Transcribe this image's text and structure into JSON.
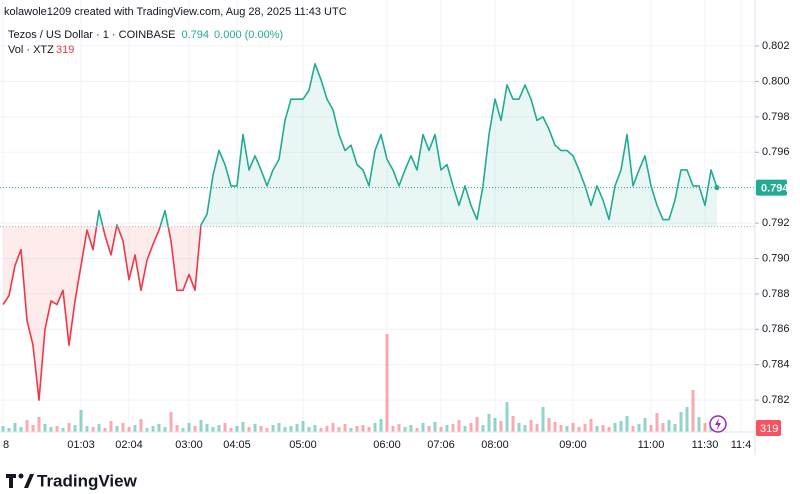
{
  "header": "kolawole1209 created with TradingView.com, Aug 28, 2025 11:43 UTC",
  "brand": "TradingView",
  "chart_data": {
    "type": "baseline",
    "symbol": "Tezos / US Dollar · 1 · COINBASE",
    "change": "0.000 (0.00%)",
    "volume_label": "Vol · XTZ",
    "last_price": 0.794,
    "baseline": 0.7918,
    "above_color": "#22ab94",
    "below_color": "#f23645",
    "up_color": "#22ab94",
    "down_color": "#f7525f",
    "grid": true,
    "ylim": [
      0.7802,
      0.8046
    ],
    "yticks": [
      0.782,
      0.784,
      0.786,
      0.788,
      {
        "value": 0.79,
        "label": "0.790"
      },
      0.792,
      0.796,
      0.798,
      {
        "value": 0.8,
        "label": "0.800"
      },
      0.802
    ],
    "y2lim": [
      0,
      10000
    ],
    "categories": [
      "8",
      null,
      null,
      null,
      null,
      null,
      null,
      null,
      null,
      null,
      null,
      null,
      null,
      "01:03",
      null,
      null,
      null,
      null,
      null,
      null,
      null,
      "02:04",
      null,
      null,
      null,
      null,
      null,
      null,
      null,
      null,
      null,
      "03:00",
      null,
      null,
      null,
      null,
      null,
      null,
      null,
      "04:05",
      null,
      null,
      null,
      null,
      null,
      null,
      null,
      null,
      null,
      null,
      "05:00",
      null,
      null,
      null,
      null,
      null,
      null,
      null,
      null,
      null,
      null,
      null,
      null,
      null,
      "06:00",
      null,
      null,
      null,
      null,
      null,
      null,
      null,
      null,
      "07:06",
      null,
      null,
      null,
      null,
      null,
      null,
      null,
      null,
      "08:00",
      null,
      null,
      null,
      null,
      null,
      null,
      null,
      null,
      null,
      null,
      null,
      null,
      "09:00",
      null,
      null,
      null,
      null,
      null,
      null,
      null,
      null,
      null,
      null,
      null,
      null,
      "11:00",
      null,
      null,
      null,
      null,
      null,
      null,
      null,
      null,
      "11:30",
      null,
      null,
      null,
      null,
      null,
      "11:4",
      null
    ],
    "series": [
      {
        "name": "Tezos / US Dollar",
        "values": [
          0.7874,
          0.7879,
          0.7896,
          0.7905,
          0.7865,
          0.7851,
          0.782,
          0.786,
          0.7876,
          0.7874,
          0.7882,
          0.7851,
          0.7876,
          0.7896,
          0.7916,
          0.7905,
          0.7927,
          0.7913,
          0.7902,
          0.7919,
          0.791,
          0.7888,
          0.7902,
          0.7882,
          0.7899,
          0.7908,
          0.7916,
          0.7927,
          0.791,
          0.7882,
          0.7882,
          0.7891,
          0.7882,
          0.7919,
          0.7925,
          0.7947,
          0.7961,
          0.7953,
          0.7941,
          0.7941,
          0.797,
          0.795,
          0.7958,
          0.795,
          0.7941,
          0.795,
          0.7956,
          0.7978,
          0.799,
          0.799,
          0.799,
          0.7995,
          0.801,
          0.8001,
          0.799,
          0.7984,
          0.797,
          0.7961,
          0.7964,
          0.7953,
          0.795,
          0.7941,
          0.7961,
          0.797,
          0.7956,
          0.795,
          0.7941,
          0.795,
          0.7958,
          0.795,
          0.797,
          0.7961,
          0.797,
          0.795,
          0.7953,
          0.7941,
          0.793,
          0.7941,
          0.793,
          0.7922,
          0.7941,
          0.797,
          0.799,
          0.7978,
          0.7998,
          0.799,
          0.799,
          0.7998,
          0.799,
          0.7978,
          0.798,
          0.7973,
          0.7964,
          0.7961,
          0.7961,
          0.7958,
          0.795,
          0.7941,
          0.793,
          0.7941,
          0.7933,
          0.7922,
          0.7941,
          0.795,
          0.797,
          0.7941,
          0.795,
          0.7958,
          0.7941,
          0.793,
          0.7922,
          0.7922,
          0.7933,
          0.795,
          0.795,
          0.7941,
          0.7941,
          0.793,
          0.795,
          0.794,
          null,
          null,
          null,
          null,
          null
        ]
      },
      {
        "name": "Vol",
        "axis": "y2",
        "values": [
          600,
          400,
          900,
          500,
          1200,
          700,
          1500,
          800,
          500,
          600,
          400,
          900,
          700,
          2200,
          600,
          500,
          800,
          400,
          1100,
          600,
          900,
          500,
          700,
          1300,
          400,
          600,
          800,
          500,
          2000,
          700,
          400,
          900,
          600,
          1200,
          800,
          500,
          700,
          900,
          400,
          600,
          1000,
          500,
          800,
          600,
          400,
          700,
          900,
          500,
          600,
          800,
          1100,
          500,
          700,
          400,
          600,
          900,
          500,
          800,
          400,
          600,
          700,
          500,
          900,
          1300,
          9800,
          600,
          800,
          500,
          700,
          400,
          900,
          600,
          1000,
          500,
          700,
          800,
          1200,
          600,
          900,
          1500,
          700,
          1800,
          1400,
          1100,
          3000,
          1600,
          900,
          700,
          1200,
          800,
          2500,
          1400,
          1000,
          700,
          600,
          900,
          500,
          800,
          1300,
          600,
          700,
          500,
          900,
          1100,
          1600,
          600,
          800,
          1400,
          700,
          1900,
          900,
          1200,
          800,
          2000,
          2500,
          4200,
          1500,
          900,
          700,
          319,
          null,
          null,
          null,
          null,
          null
        ]
      }
    ]
  }
}
